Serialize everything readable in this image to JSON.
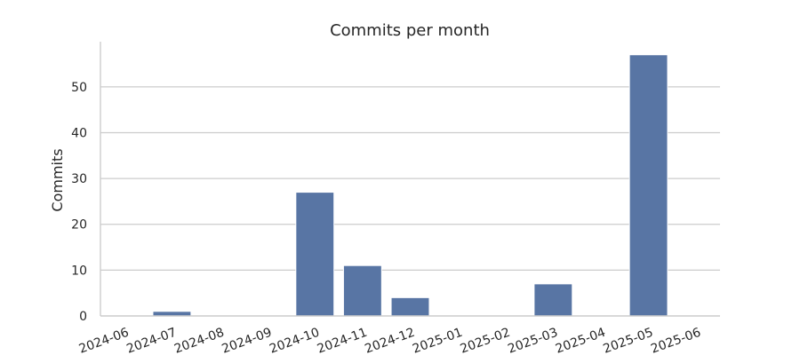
{
  "chart_data": {
    "type": "bar",
    "title": "Commits per month",
    "xlabel": "",
    "ylabel": "Commits",
    "categories": [
      "2024-06",
      "2024-07",
      "2024-08",
      "2024-09",
      "2024-10",
      "2024-11",
      "2024-12",
      "2025-01",
      "2025-02",
      "2025-03",
      "2025-04",
      "2025-05",
      "2025-06"
    ],
    "values": [
      0,
      1,
      0,
      0,
      27,
      11,
      4,
      0,
      0,
      7,
      0,
      57,
      0
    ],
    "yticks": [
      0,
      10,
      20,
      30,
      40,
      50
    ],
    "ylim": [
      0,
      59.85
    ],
    "grid": "y-axis only",
    "legend": "none",
    "bar_color": "#5875a4"
  }
}
